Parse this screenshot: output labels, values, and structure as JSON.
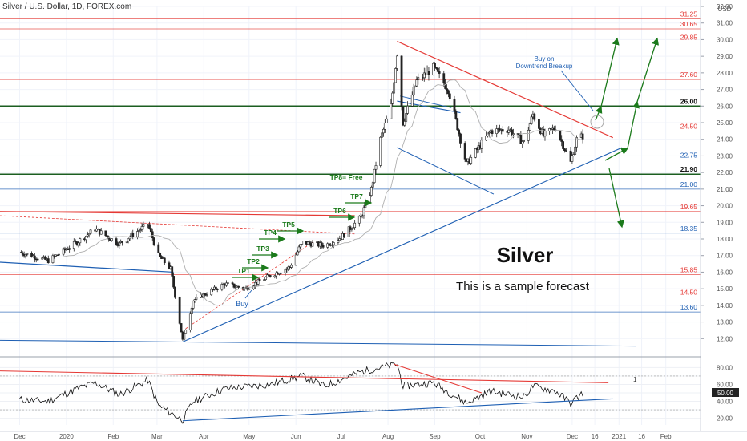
{
  "header": {
    "symbol": "Silver / U.S. Dollar, 1D, FOREX.com"
  },
  "currency": "USD",
  "chart_data": [
    {
      "type": "candlestick",
      "title": "Silver",
      "subtitle": "This is a sample forecast",
      "ylim": [
        11.0,
        32.0
      ],
      "y_ticks": [
        12,
        13,
        14,
        15,
        16,
        17,
        18,
        19,
        20,
        21,
        22,
        23,
        24,
        25,
        26,
        27,
        28,
        29,
        30,
        31,
        32
      ],
      "y_tick_labels": [
        "12.00",
        "13.00",
        "14.00",
        "15.00",
        "16.00",
        "17.00",
        "18.00",
        "19.00",
        "20.00",
        "21.00",
        "22.00",
        "23.00",
        "24.00",
        "25.00",
        "26.00",
        "27.00",
        "28.00",
        "29.00",
        "30.00",
        "31.00",
        "32.00"
      ],
      "x_tick_labels": [
        "Dec",
        "2020",
        "Feb",
        "Mar",
        "Apr",
        "May",
        "Jun",
        "Jul",
        "Aug",
        "Sep",
        "Oct",
        "Nov",
        "Dec",
        "16",
        "2021",
        "16",
        "Feb"
      ],
      "price_path": [
        [
          "2019-12-01",
          17.2
        ],
        [
          "2019-12-20",
          16.7
        ],
        [
          "2020-01-08",
          17.8
        ],
        [
          "2020-01-20",
          18.6
        ],
        [
          "2020-02-05",
          17.7
        ],
        [
          "2020-02-24",
          18.9
        ],
        [
          "2020-03-02",
          17.0
        ],
        [
          "2020-03-10",
          16.2
        ],
        [
          "2020-03-18",
          11.9
        ],
        [
          "2020-03-25",
          14.3
        ],
        [
          "2020-04-15",
          15.3
        ],
        [
          "2020-04-28",
          15.0
        ],
        [
          "2020-05-15",
          15.8
        ],
        [
          "2020-05-28",
          16.3
        ],
        [
          "2020-06-05",
          17.8
        ],
        [
          "2020-06-20",
          17.6
        ],
        [
          "2020-07-01",
          18.1
        ],
        [
          "2020-07-14",
          19.3
        ],
        [
          "2020-07-21",
          21.0
        ],
        [
          "2020-07-27",
          24.0
        ],
        [
          "2020-08-03",
          26.0
        ],
        [
          "2020-08-07",
          29.2
        ],
        [
          "2020-08-11",
          25.0
        ],
        [
          "2020-08-20",
          27.5
        ],
        [
          "2020-08-31",
          28.3
        ],
        [
          "2020-09-10",
          27.0
        ],
        [
          "2020-09-22",
          22.5
        ],
        [
          "2020-09-30",
          23.5
        ],
        [
          "2020-10-08",
          24.5
        ],
        [
          "2020-10-20",
          24.6
        ],
        [
          "2020-10-30",
          23.8
        ],
        [
          "2020-11-05",
          25.5
        ],
        [
          "2020-11-12",
          24.2
        ],
        [
          "2020-11-20",
          24.7
        ],
        [
          "2020-11-30",
          22.6
        ],
        [
          "2020-12-04",
          24.0
        ],
        [
          "2020-12-08",
          24.2
        ]
      ],
      "horizontal_levels": [
        {
          "value": 31.25,
          "label": "31.25",
          "color": "#e53935"
        },
        {
          "value": 30.65,
          "label": "30.65",
          "color": "#e53935"
        },
        {
          "value": 29.85,
          "label": "29.85",
          "color": "#e53935"
        },
        {
          "value": 27.6,
          "label": "27.60",
          "color": "#e53935"
        },
        {
          "value": 26.0,
          "label": "26.00",
          "color": "#1b5e20"
        },
        {
          "value": 24.5,
          "label": "24.50",
          "color": "#e53935"
        },
        {
          "value": 22.75,
          "label": "22.75",
          "color": "#1e5fb3"
        },
        {
          "value": 21.9,
          "label": "21.90",
          "color": "#1b5e20"
        },
        {
          "value": 21.0,
          "label": "21.00",
          "color": "#1e5fb3"
        },
        {
          "value": 19.65,
          "label": "19.65",
          "color": "#e53935"
        },
        {
          "value": 18.35,
          "label": "18.35",
          "color": "#1e5fb3"
        },
        {
          "value": 15.85,
          "label": "15.85",
          "color": "#e53935"
        },
        {
          "value": 14.5,
          "label": "14.50",
          "color": "#e53935"
        },
        {
          "value": 13.6,
          "label": "13.60",
          "color": "#1e5fb3"
        }
      ],
      "annotations": {
        "targets": [
          "TP1",
          "TP2",
          "TP3",
          "TP4",
          "TP5",
          "TP6",
          "TP7",
          "TP8= Free"
        ],
        "buy": "Buy",
        "buy_on_breakup": "Buy on\nDowntrend Breakup"
      },
      "colors": {
        "up": "#1b1b1b",
        "down": "#1b1b1b",
        "resistance": "#e53935",
        "support": "#1e5fb3",
        "targets": "#1b7a1b"
      }
    },
    {
      "type": "line",
      "title": "",
      "ylim": [
        12,
        88
      ],
      "y_ticks": [
        20,
        30,
        40,
        50,
        60,
        70,
        80
      ],
      "y_tick_labels": [
        "20.00",
        "",
        "40.00",
        "50.00",
        "60.00",
        "",
        "80.00"
      ],
      "series": [
        {
          "values_path": [
            [
              "2019-12-01",
              42
            ],
            [
              "2019-12-20",
              40
            ],
            [
              "2020-01-08",
              55
            ],
            [
              "2020-01-20",
              62
            ],
            [
              "2020-02-05",
              48
            ],
            [
              "2020-02-24",
              65
            ],
            [
              "2020-03-02",
              35
            ],
            [
              "2020-03-18",
              18
            ],
            [
              "2020-03-25",
              40
            ],
            [
              "2020-04-15",
              55
            ],
            [
              "2020-05-15",
              60
            ],
            [
              "2020-06-05",
              70
            ],
            [
              "2020-06-20",
              58
            ],
            [
              "2020-07-14",
              75
            ],
            [
              "2020-07-27",
              80
            ],
            [
              "2020-08-07",
              84
            ],
            [
              "2020-08-11",
              58
            ],
            [
              "2020-08-31",
              62
            ],
            [
              "2020-09-22",
              38
            ],
            [
              "2020-10-08",
              52
            ],
            [
              "2020-10-30",
              45
            ],
            [
              "2020-11-05",
              58
            ],
            [
              "2020-11-20",
              52
            ],
            [
              "2020-11-30",
              38
            ],
            [
              "2020-12-08",
              50
            ]
          ]
        }
      ],
      "current_value_label": "50.00",
      "annotation": "1"
    }
  ]
}
